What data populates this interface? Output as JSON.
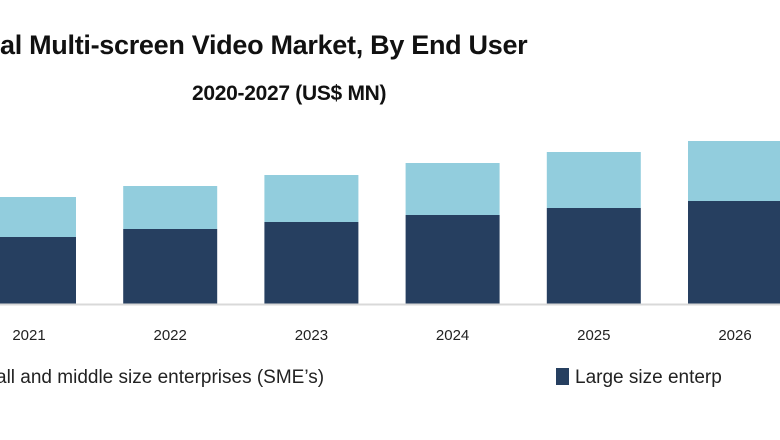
{
  "chart_data": {
    "type": "bar",
    "stacked": true,
    "title": "al Multi-screen Video Market, By End User",
    "subtitle": "2020-2027 (US$ MN)",
    "categories": [
      "2021",
      "2022",
      "2023",
      "2024",
      "2025",
      "2026"
    ],
    "series": [
      {
        "name": "Large size enterp",
        "color": "#263f60",
        "values": [
          67,
          75,
          82,
          89,
          96,
          103
        ]
      },
      {
        "name": "all and middle size enterprises (SME’s)",
        "color": "#92cddd",
        "values": [
          40,
          43,
          47,
          52,
          56,
          60
        ]
      }
    ],
    "ylim": [
      0,
      165
    ],
    "grid": false,
    "legend": "bottom",
    "axis_line_color": "#d9d9d9"
  }
}
